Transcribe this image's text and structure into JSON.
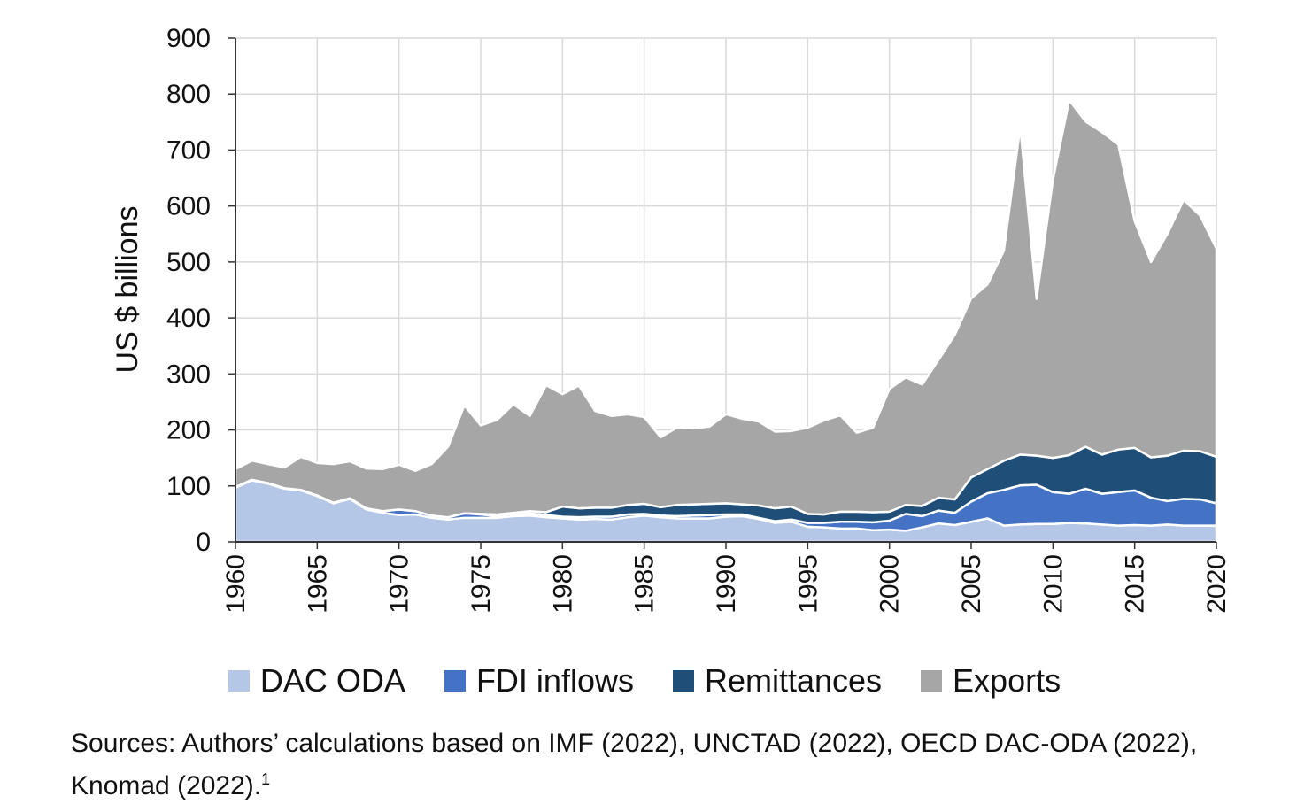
{
  "chart_data": {
    "type": "area",
    "stacked": true,
    "ylabel": "US $ billions",
    "xlabel": "",
    "ylim": [
      0,
      900
    ],
    "yticks": [
      0,
      100,
      200,
      300,
      400,
      500,
      600,
      700,
      800,
      900
    ],
    "xlim": [
      1960,
      2020
    ],
    "xticks": [
      1960,
      1965,
      1970,
      1975,
      1980,
      1985,
      1990,
      1995,
      2000,
      2005,
      2010,
      2015,
      2020
    ],
    "grid": true,
    "legend_position": "bottom",
    "x": [
      1960,
      1961,
      1962,
      1963,
      1964,
      1965,
      1966,
      1967,
      1968,
      1969,
      1970,
      1971,
      1972,
      1973,
      1974,
      1975,
      1976,
      1977,
      1978,
      1979,
      1980,
      1981,
      1982,
      1983,
      1984,
      1985,
      1986,
      1987,
      1988,
      1989,
      1990,
      1991,
      1992,
      1993,
      1994,
      1995,
      1996,
      1997,
      1998,
      1999,
      2000,
      2001,
      2002,
      2003,
      2004,
      2005,
      2006,
      2007,
      2008,
      2009,
      2010,
      2011,
      2012,
      2013,
      2014,
      2015,
      2016,
      2017,
      2018,
      2019,
      2020
    ],
    "series": [
      {
        "name": "DAC ODA",
        "color": "#b4c7e7",
        "values": [
          97,
          110,
          104,
          95,
          92,
          82,
          69,
          77,
          58,
          52,
          48,
          49,
          43,
          40,
          43,
          43,
          43,
          46,
          47,
          44,
          42,
          40,
          41,
          40,
          44,
          47,
          44,
          42,
          42,
          42,
          45,
          46,
          41,
          34,
          36,
          27,
          26,
          24,
          24,
          21,
          22,
          20,
          26,
          33,
          30,
          36,
          42,
          29,
          31,
          32,
          32,
          34,
          33,
          31,
          29,
          30,
          29,
          31,
          29,
          29,
          29
        ]
      },
      {
        "name": "FDI inflows",
        "color": "#4472c4",
        "values": [
          1,
          1,
          1,
          1,
          1,
          1,
          1,
          1,
          2,
          3,
          10,
          6,
          4,
          4,
          8,
          6,
          3,
          3,
          4,
          4,
          3,
          4,
          4,
          5,
          5,
          3,
          3,
          4,
          5,
          6,
          4,
          3,
          2,
          3,
          4,
          7,
          8,
          12,
          12,
          14,
          16,
          30,
          20,
          23,
          22,
          36,
          45,
          64,
          70,
          70,
          57,
          52,
          62,
          55,
          60,
          62,
          50,
          42,
          48,
          47,
          40
        ]
      },
      {
        "name": "Remittances",
        "color": "#1f4e79",
        "values": [
          0,
          0,
          0,
          0,
          0,
          0,
          0,
          0,
          0,
          0,
          0,
          0,
          0,
          0,
          0,
          1,
          3,
          3,
          4,
          5,
          18,
          16,
          16,
          16,
          17,
          18,
          15,
          20,
          20,
          20,
          20,
          18,
          22,
          23,
          23,
          16,
          15,
          18,
          18,
          18,
          16,
          16,
          18,
          23,
          24,
          43,
          43,
          52,
          55,
          52,
          61,
          69,
          75,
          70,
          76,
          76,
          72,
          81,
          86,
          86,
          83
        ]
      },
      {
        "name": "Exports",
        "color": "#a6a6a6",
        "values": [
          32,
          34,
          34,
          37,
          59,
          58,
          69,
          66,
          71,
          75,
          80,
          72,
          92,
          126,
          193,
          158,
          169,
          194,
          170,
          227,
          201,
          219,
          173,
          164,
          162,
          155,
          125,
          138,
          136,
          138,
          159,
          153,
          150,
          137,
          135,
          154,
          168,
          172,
          141,
          151,
          219,
          228,
          217,
          246,
          294,
          320,
          330,
          375,
          585,
          280,
          497,
          634,
          581,
          576,
          545,
          405,
          349,
          396,
          448,
          421,
          372
        ]
      }
    ]
  },
  "legend": {
    "items": [
      {
        "label": "DAC ODA",
        "color": "#b4c7e7"
      },
      {
        "label": "FDI inflows",
        "color": "#4472c4"
      },
      {
        "label": "Remittances",
        "color": "#1f4e79"
      },
      {
        "label": "Exports",
        "color": "#a6a6a6"
      }
    ]
  },
  "source": {
    "text": "Sources: Authors’ calculations based on IMF (2022), UNCTAD (2022), OECD DAC-ODA (2022), Knomad (2022).",
    "footnote": "1"
  }
}
